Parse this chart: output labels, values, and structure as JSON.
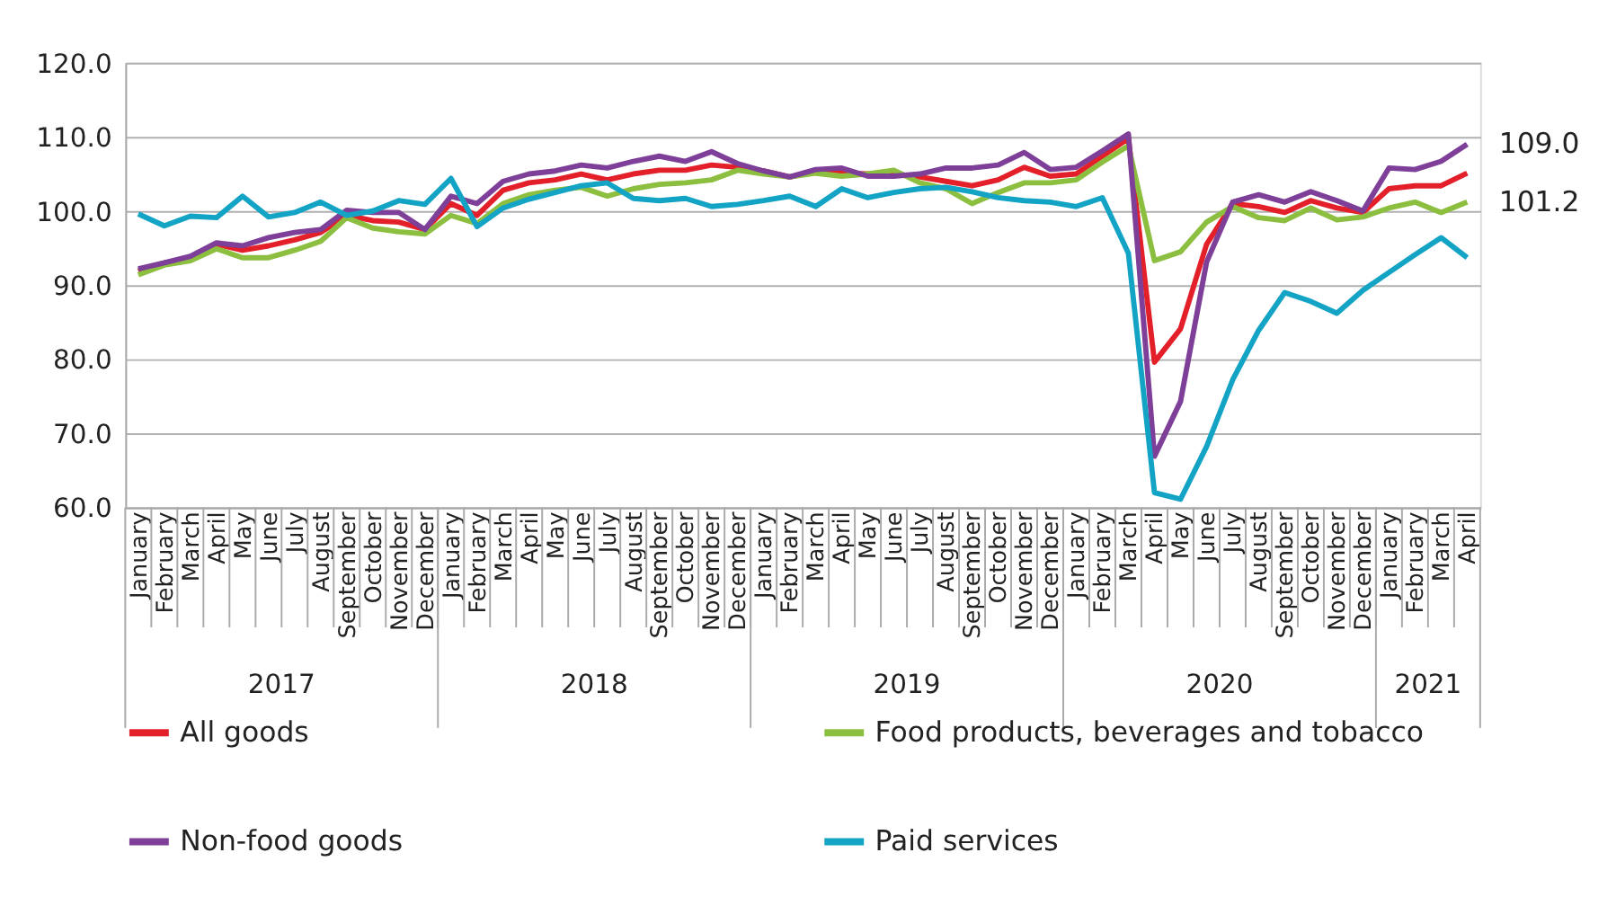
{
  "chart_data": {
    "type": "line",
    "categories": [
      "January",
      "February",
      "March",
      "April",
      "May",
      "June",
      "July",
      "August",
      "September",
      "October",
      "November",
      "December",
      "January",
      "February",
      "March",
      "April",
      "May",
      "June",
      "July",
      "August",
      "September",
      "October",
      "November",
      "December",
      "January",
      "February",
      "March",
      "April",
      "May",
      "June",
      "July",
      "August",
      "September",
      "October",
      "November",
      "December",
      "January",
      "February",
      "March",
      "April",
      "May",
      "June",
      "July",
      "August",
      "September",
      "October",
      "November",
      "December",
      "January",
      "February",
      "March",
      "April"
    ],
    "annotations": [
      "2017",
      "2018",
      "2019",
      "2020",
      "2021"
    ],
    "series": [
      {
        "name": "All goods",
        "color": "#e3202a",
        "values": [
          91.9,
          93.0,
          93.5,
          95.5,
          94.7,
          95.3,
          96.1,
          97.1,
          99.4,
          98.7,
          98.5,
          97.5,
          101.0,
          99.4,
          102.8,
          103.8,
          104.2,
          105.0,
          104.2,
          105.0,
          105.5,
          105.5,
          106.2,
          105.9,
          105.4,
          104.6,
          105.4,
          105.1,
          105.0,
          105.0,
          104.6,
          104.0,
          103.4,
          104.2,
          105.9,
          104.7,
          105.0,
          107.4,
          109.8,
          79.6,
          84.1,
          95.5,
          101.0,
          100.6,
          99.8,
          101.4,
          100.4,
          99.8,
          103.0,
          103.4,
          103.4,
          105.1
        ]
      },
      {
        "name": "Food products, beverages and tobacco",
        "color": "#8cbf3f",
        "values": [
          91.4,
          92.7,
          93.3,
          94.9,
          93.7,
          93.7,
          94.7,
          95.9,
          99.1,
          97.7,
          97.2,
          96.9,
          99.4,
          98.3,
          101.0,
          102.2,
          102.8,
          103.2,
          102.0,
          103.0,
          103.6,
          103.8,
          104.2,
          105.5,
          105.0,
          104.6,
          105.1,
          104.7,
          105.0,
          105.5,
          103.8,
          103.0,
          101.0,
          102.5,
          103.8,
          103.8,
          104.2,
          106.6,
          108.8,
          93.3,
          94.5,
          98.5,
          100.6,
          99.1,
          98.7,
          100.4,
          98.8,
          99.2,
          100.4,
          101.2,
          99.8,
          101.2
        ],
        "value_labels": [
          null,
          null,
          null,
          null,
          null,
          null,
          null,
          null,
          null,
          null,
          null,
          null,
          null,
          null,
          null,
          null,
          null,
          null,
          null,
          null,
          null,
          null,
          null,
          null,
          null,
          null,
          null,
          null,
          null,
          null,
          null,
          null,
          null,
          null,
          null,
          null,
          null,
          null,
          null,
          null,
          null,
          null,
          null,
          null,
          null,
          null,
          null,
          null,
          null,
          null,
          null,
          "101.2"
        ]
      },
      {
        "name": "Non-food goods",
        "color": "#7e3f98",
        "values": [
          92.2,
          93.0,
          93.9,
          95.7,
          95.3,
          96.4,
          97.1,
          97.5,
          100.1,
          99.8,
          99.8,
          97.5,
          102.0,
          101.0,
          104.0,
          105.0,
          105.4,
          106.2,
          105.8,
          106.7,
          107.4,
          106.7,
          108.0,
          106.4,
          105.4,
          104.6,
          105.6,
          105.8,
          104.7,
          104.7,
          105.0,
          105.8,
          105.8,
          106.2,
          107.9,
          105.6,
          105.9,
          108.1,
          110.4,
          66.9,
          74.3,
          93.1,
          101.2,
          102.2,
          101.2,
          102.6,
          101.4,
          100.0,
          105.8,
          105.6,
          106.7,
          109.0
        ],
        "value_labels": [
          null,
          null,
          null,
          null,
          null,
          null,
          null,
          null,
          null,
          null,
          null,
          null,
          null,
          null,
          null,
          null,
          null,
          null,
          null,
          null,
          null,
          null,
          null,
          null,
          null,
          null,
          null,
          null,
          null,
          null,
          null,
          null,
          null,
          null,
          null,
          null,
          null,
          null,
          null,
          null,
          null,
          null,
          null,
          null,
          null,
          null,
          null,
          null,
          null,
          null,
          null,
          "109.0"
        ]
      },
      {
        "name": "Paid services",
        "color": "#13a3c4",
        "values": [
          99.6,
          98.0,
          99.3,
          99.1,
          102.0,
          99.2,
          99.8,
          101.2,
          99.4,
          100.0,
          101.4,
          100.9,
          104.4,
          97.9,
          100.4,
          101.6,
          102.5,
          103.4,
          103.8,
          101.7,
          101.4,
          101.7,
          100.6,
          100.9,
          101.4,
          102.0,
          100.6,
          103.0,
          101.8,
          102.5,
          103.0,
          103.2,
          102.6,
          101.8,
          101.4,
          101.2,
          100.6,
          101.8,
          94.3,
          62.0,
          61.1,
          68.2,
          77.2,
          83.9,
          89.0,
          87.8,
          86.2,
          89.3,
          91.7,
          94.1,
          96.4,
          93.7
        ]
      }
    ],
    "ylim": [
      60,
      120
    ],
    "yticks": [
      {
        "value": 60,
        "label": "60.0"
      },
      {
        "value": 70,
        "label": "70.0"
      },
      {
        "value": 80,
        "label": "80.0"
      },
      {
        "value": 90,
        "label": "90.0"
      },
      {
        "value": 100,
        "label": "100.0"
      },
      {
        "value": 110,
        "label": "110.0"
      },
      {
        "value": 120,
        "label": "120.0"
      }
    ],
    "grid": "y",
    "legend": "bottom"
  }
}
